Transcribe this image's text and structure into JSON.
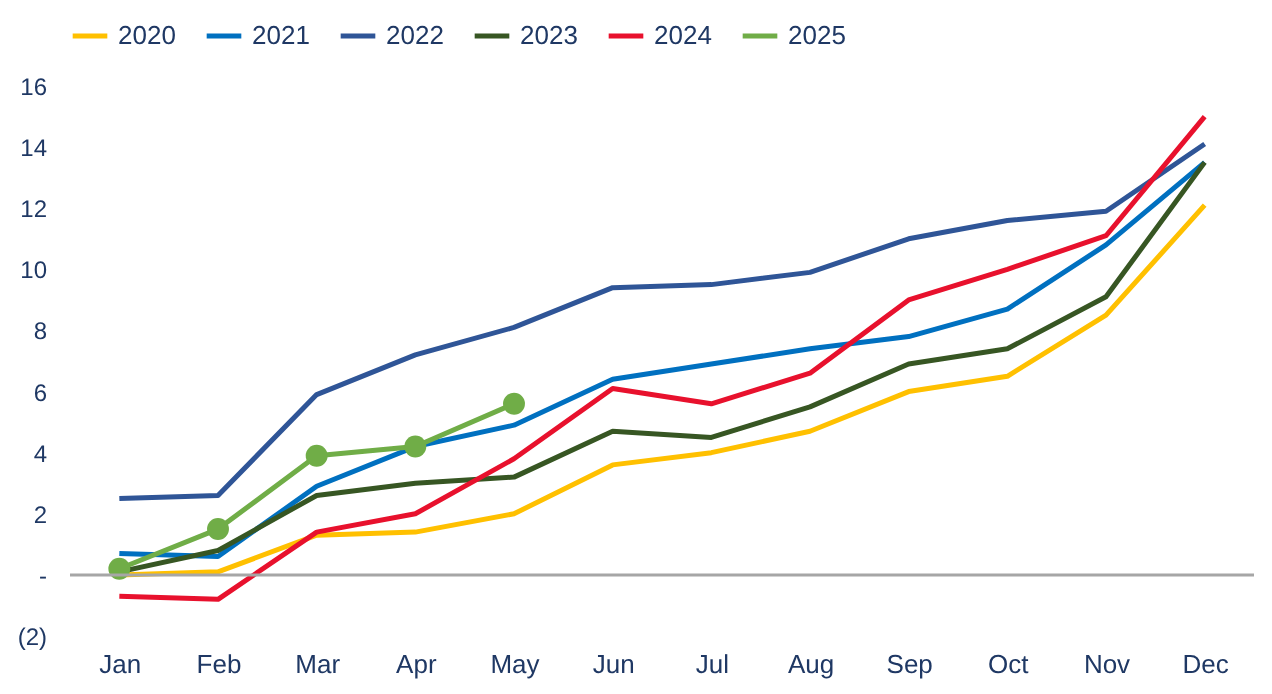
{
  "chart_data": {
    "type": "line",
    "categories": [
      "Jan",
      "Feb",
      "Mar",
      "Apr",
      "May",
      "Jun",
      "Jul",
      "Aug",
      "Sep",
      "Oct",
      "Nov",
      "Dec"
    ],
    "series": [
      {
        "name": "2020",
        "color": "#ffc000",
        "values": [
          0.0,
          0.1,
          1.3,
          1.4,
          2.0,
          3.6,
          4.0,
          4.7,
          6.0,
          6.5,
          8.5,
          12.1
        ]
      },
      {
        "name": "2021",
        "color": "#0070c0",
        "values": [
          0.7,
          0.6,
          2.9,
          4.2,
          4.9,
          6.4,
          6.9,
          7.4,
          7.8,
          8.7,
          10.8,
          13.5
        ]
      },
      {
        "name": "2022",
        "color": "#2f5597",
        "values": [
          2.5,
          2.6,
          5.9,
          7.2,
          8.1,
          9.4,
          9.5,
          9.9,
          11.0,
          11.6,
          11.9,
          14.1
        ]
      },
      {
        "name": "2023",
        "color": "#375623",
        "values": [
          0.1,
          0.8,
          2.6,
          3.0,
          3.2,
          4.7,
          4.5,
          5.5,
          6.9,
          7.4,
          9.1,
          13.5
        ]
      },
      {
        "name": "2024",
        "color": "#e8112d",
        "values": [
          -0.7,
          -0.8,
          1.4,
          2.0,
          3.8,
          6.1,
          5.6,
          6.6,
          9.0,
          10.0,
          11.1,
          15.0
        ]
      },
      {
        "name": "2025",
        "color": "#70ad47",
        "marker": "circle",
        "values": [
          0.2,
          1.5,
          3.9,
          4.2,
          5.6,
          null,
          null,
          null,
          null,
          null,
          null,
          null
        ]
      }
    ],
    "ylim": [
      -2,
      16
    ],
    "yticks": [
      {
        "value": -2,
        "label": "(2)"
      },
      {
        "value": 0,
        "label": "-"
      },
      2,
      4,
      6,
      8,
      10,
      12,
      14,
      16
    ],
    "grid": false,
    "ref_lines": [
      {
        "axis": "y",
        "value": 0,
        "color": "#a6a6a6"
      }
    ],
    "legend": "top",
    "line_style": "solid"
  }
}
